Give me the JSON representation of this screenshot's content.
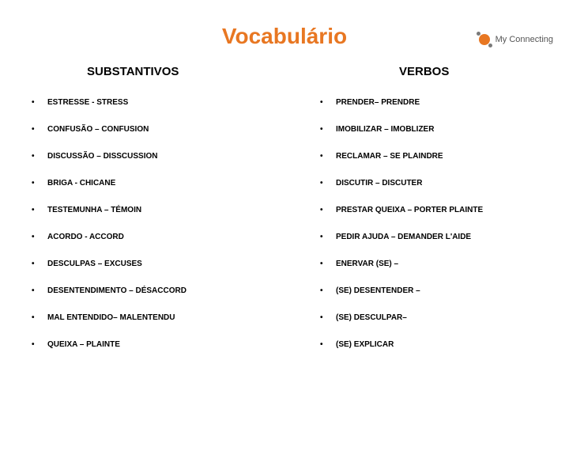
{
  "logo": {
    "text": "My Connecting"
  },
  "title": "Vocabulário",
  "columns": {
    "left": {
      "header": "SUBSTANTIVOS",
      "items": [
        "ESTRESSE - STRESS",
        "CONFUSÃO – CONFUSION",
        "DISCUSSÃO – DISSCUSSION",
        "BRIGA - CHICANE",
        "TESTEMUNHA – TÉMOIN",
        "ACORDO - ACCORD",
        "DESCULPAS – EXCUSES",
        "DESENTENDIMENTO – DÉSACCORD",
        "MAL ENTENDIDO– MALENTENDU",
        "QUEIXA – PLAINTE"
      ]
    },
    "right": {
      "header": "VERBOS",
      "items": [
        "PRENDER– PRENDRE",
        "IMOBILIZAR – IMOBLIZER",
        "RECLAMAR – SE PLAINDRE",
        "DISCUTIR – DISCUTER",
        "PRESTAR QUEIXA – PORTER PLAINTE",
        "PEDIR AJUDA – DEMANDER L'AIDE",
        "ENERVAR (SE) –",
        "(SE) DESENTENDER –",
        "(SE) DESCULPAR–",
        "(SE) EXPLICAR"
      ]
    }
  },
  "colors": {
    "accent": "#e87722",
    "text": "#000000",
    "background": "#ffffff"
  }
}
